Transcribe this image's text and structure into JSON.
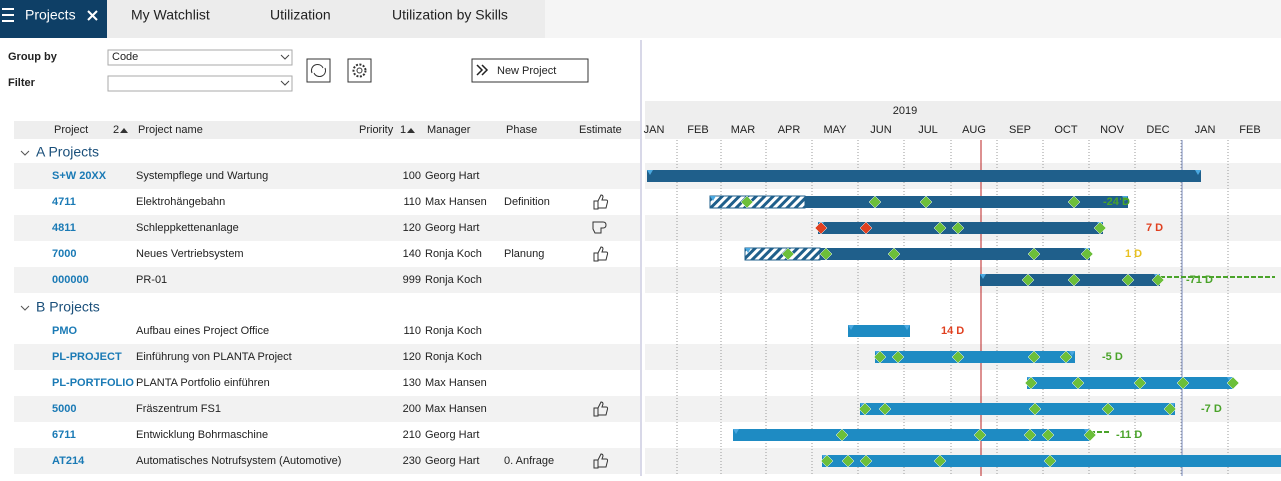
{
  "tabs": [
    "Projects",
    "My Watchlist",
    "Utilization",
    "Utilization by Skills"
  ],
  "toolbar": {
    "group_by_label": "Group by",
    "group_by_value": "Code",
    "filter_label": "Filter",
    "new_project": "New Project"
  },
  "columns": {
    "project": "Project",
    "project_sort": "2",
    "name": "Project name",
    "priority": "Priority",
    "priority_sort": "1",
    "manager": "Manager",
    "phase": "Phase",
    "estimate": "Estimate"
  },
  "gantt": {
    "year": "2019",
    "months": [
      "JAN",
      "FEB",
      "MAR",
      "APR",
      "MAY",
      "JUN",
      "JUL",
      "AUG",
      "SEP",
      "OCT",
      "NOV",
      "DEC",
      "JAN",
      "FEB"
    ]
  },
  "groups": [
    {
      "title": "A Projects",
      "rows": [
        {
          "code": "S+W 20XX",
          "name": "Systempflege und Wartung",
          "priority": 100,
          "manager": "Georg Hart"
        },
        {
          "code": "4711",
          "name": "Elektrohängebahn",
          "priority": 110,
          "manager": "Max Hansen",
          "phase": "Definition",
          "deviation": "-24 D"
        },
        {
          "code": "4811",
          "name": "Schleppkettenanlage",
          "priority": 120,
          "manager": "Georg Hart",
          "deviation": "7 D"
        },
        {
          "code": "7000",
          "name": "Neues Vertriebsystem",
          "priority": 140,
          "manager": "Ronja Koch",
          "phase": "Planung",
          "deviation": "1 D"
        },
        {
          "code": "000000",
          "name": "PR-01",
          "priority": 999,
          "manager": "Ronja Koch",
          "deviation": "-71 D"
        }
      ]
    },
    {
      "title": "B Projects",
      "rows": [
        {
          "code": "PMO",
          "name": "Aufbau eines Project Office",
          "priority": 110,
          "manager": "Ronja Koch",
          "deviation": "14 D"
        },
        {
          "code": "PL-PROJECT",
          "name": "Einführung von PLANTA Project",
          "priority": 120,
          "manager": "Ronja Koch",
          "deviation": "-5 D"
        },
        {
          "code": "PL-PORTFOLIO",
          "name": "PLANTA Portfolio einführen",
          "priority": 130,
          "manager": "Max Hansen"
        },
        {
          "code": "5000",
          "name": "Fräszentrum FS1",
          "priority": 200,
          "manager": "Max Hansen",
          "deviation": "-7 D"
        },
        {
          "code": "6711",
          "name": "Entwicklung Bohrmaschine",
          "priority": 210,
          "manager": "Georg Hart",
          "deviation": "-11 D"
        },
        {
          "code": "AT214",
          "name": "Automatisches Notrufsystem (Automotive)",
          "priority": 230,
          "manager": "Georg Hart",
          "phase": "0. Anfrage"
        }
      ]
    }
  ]
}
